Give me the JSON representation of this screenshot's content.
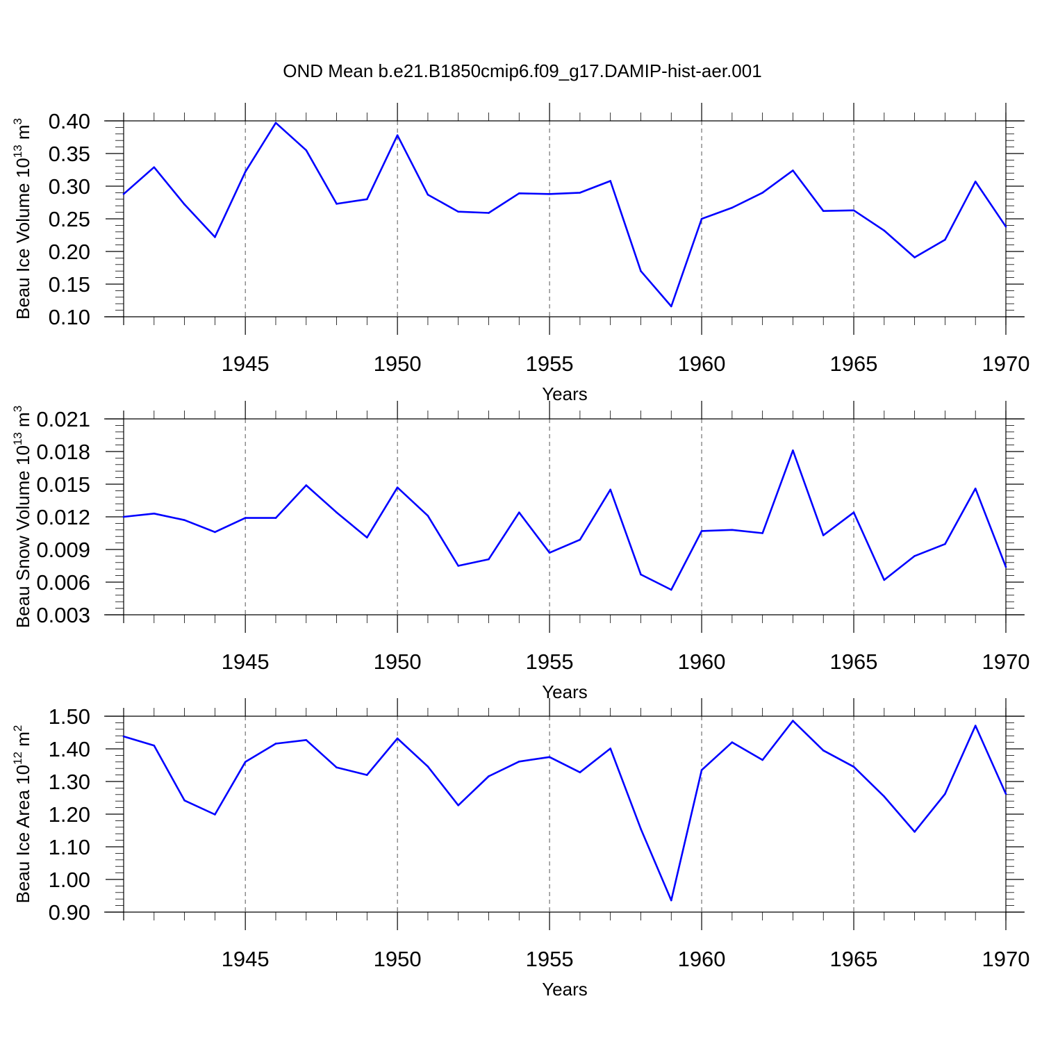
{
  "title": "OND Mean b.e21.B1850cmip6.f09_g17.DAMIP-hist-aer.001",
  "colors": {
    "series": "#0000ff"
  },
  "chart_data": [
    {
      "type": "line",
      "xlabel": "Years",
      "ylabel": "Beau Ice Volume 10",
      "ylabel_exp": "13",
      "ylabel_unit": " m",
      "ylabel_unit_exp": "3",
      "xlim": [
        1941,
        1970
      ],
      "ylim": [
        0.1,
        0.4
      ],
      "yticks": [
        0.1,
        0.15,
        0.2,
        0.25,
        0.3,
        0.35,
        0.4
      ],
      "ytick_labels": [
        "0.10",
        "0.15",
        "0.20",
        "0.25",
        "0.30",
        "0.35",
        "0.40"
      ],
      "xticks": [
        1945,
        1950,
        1955,
        1960,
        1965,
        1970
      ],
      "xtick_labels": [
        "1945",
        "1950",
        "1955",
        "1960",
        "1965",
        "1970"
      ],
      "grid": "vertical-dashed",
      "x": [
        1941,
        1942,
        1943,
        1944,
        1945,
        1946,
        1947,
        1948,
        1949,
        1950,
        1951,
        1952,
        1953,
        1954,
        1955,
        1956,
        1957,
        1958,
        1959,
        1960,
        1961,
        1962,
        1963,
        1964,
        1965,
        1966,
        1967,
        1968,
        1969,
        1970
      ],
      "values": [
        0.288,
        0.329,
        0.272,
        0.222,
        0.322,
        0.397,
        0.355,
        0.273,
        0.28,
        0.378,
        0.287,
        0.261,
        0.259,
        0.289,
        0.288,
        0.29,
        0.308,
        0.17,
        0.116,
        0.25,
        0.267,
        0.29,
        0.324,
        0.262,
        0.263,
        0.232,
        0.191,
        0.218,
        0.307,
        0.238
      ]
    },
    {
      "type": "line",
      "xlabel": "Years",
      "ylabel": "Beau Snow Volume 10",
      "ylabel_exp": "13",
      "ylabel_unit": " m",
      "ylabel_unit_exp": "3",
      "xlim": [
        1941,
        1970
      ],
      "ylim": [
        0.003,
        0.021
      ],
      "yticks": [
        0.003,
        0.006,
        0.009,
        0.012,
        0.015,
        0.018,
        0.021
      ],
      "ytick_labels": [
        "0.003",
        "0.006",
        "0.009",
        "0.012",
        "0.015",
        "0.018",
        "0.021"
      ],
      "xticks": [
        1945,
        1950,
        1955,
        1960,
        1965,
        1970
      ],
      "xtick_labels": [
        "1945",
        "1950",
        "1955",
        "1960",
        "1965",
        "1970"
      ],
      "grid": "vertical-dashed",
      "x": [
        1941,
        1942,
        1943,
        1944,
        1945,
        1946,
        1947,
        1948,
        1949,
        1950,
        1951,
        1952,
        1953,
        1954,
        1955,
        1956,
        1957,
        1958,
        1959,
        1960,
        1961,
        1962,
        1963,
        1964,
        1965,
        1966,
        1967,
        1968,
        1969,
        1970
      ],
      "values": [
        0.012,
        0.0123,
        0.0117,
        0.0106,
        0.0119,
        0.0119,
        0.0149,
        0.0124,
        0.0101,
        0.0147,
        0.0121,
        0.0075,
        0.0081,
        0.0124,
        0.0087,
        0.0099,
        0.0145,
        0.0067,
        0.0053,
        0.0107,
        0.0108,
        0.0105,
        0.0181,
        0.0103,
        0.0124,
        0.0062,
        0.0084,
        0.0095,
        0.0146,
        0.0074
      ]
    },
    {
      "type": "line",
      "xlabel": "Years",
      "ylabel": "Beau Ice Area 10",
      "ylabel_exp": "12",
      "ylabel_unit": " m",
      "ylabel_unit_exp": "2",
      "xlim": [
        1941,
        1970
      ],
      "ylim": [
        0.9,
        1.5
      ],
      "yticks": [
        0.9,
        1.0,
        1.1,
        1.2,
        1.3,
        1.4,
        1.5
      ],
      "ytick_labels": [
        "0.90",
        "1.00",
        "1.10",
        "1.20",
        "1.30",
        "1.40",
        "1.50"
      ],
      "xticks": [
        1945,
        1950,
        1955,
        1960,
        1965,
        1970
      ],
      "xtick_labels": [
        "1945",
        "1950",
        "1955",
        "1960",
        "1965",
        "1970"
      ],
      "grid": "vertical-dashed",
      "x": [
        1941,
        1942,
        1943,
        1944,
        1945,
        1946,
        1947,
        1948,
        1949,
        1950,
        1951,
        1952,
        1953,
        1954,
        1955,
        1956,
        1957,
        1958,
        1959,
        1960,
        1961,
        1962,
        1963,
        1964,
        1965,
        1966,
        1967,
        1968,
        1969,
        1970
      ],
      "values": [
        1.438,
        1.41,
        1.242,
        1.199,
        1.36,
        1.416,
        1.427,
        1.343,
        1.32,
        1.432,
        1.346,
        1.227,
        1.316,
        1.361,
        1.375,
        1.328,
        1.401,
        1.155,
        0.936,
        1.335,
        1.42,
        1.366,
        1.486,
        1.395,
        1.345,
        1.254,
        1.146,
        1.262,
        1.471,
        1.262
      ]
    }
  ]
}
